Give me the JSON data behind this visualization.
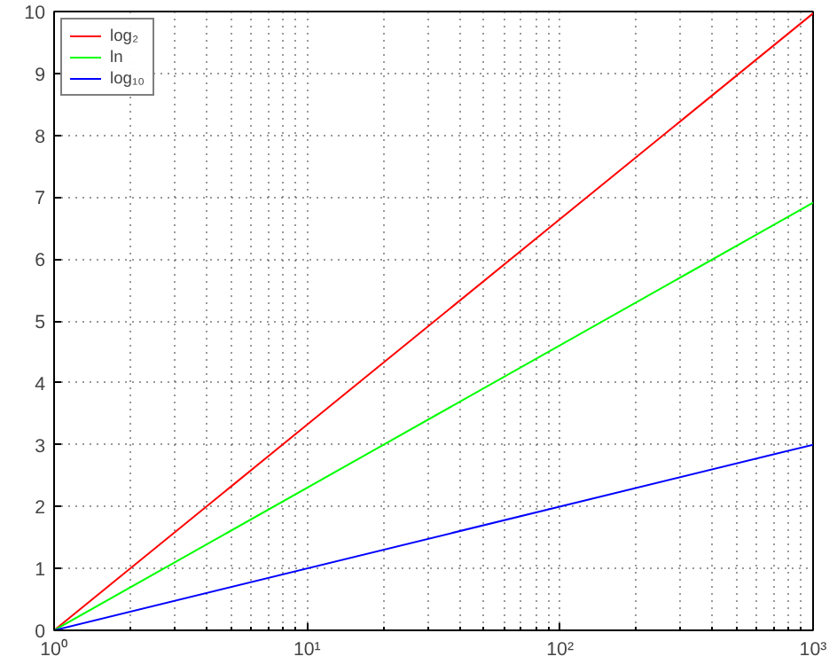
{
  "chart_data": {
    "type": "line",
    "log": "x",
    "x": [
      1,
      1000
    ],
    "series": [
      {
        "name": "log₂",
        "color": "#ff0000",
        "values": [
          0,
          9.97
        ]
      },
      {
        "name": "ln",
        "color": "#00ff00",
        "values": [
          0,
          6.91
        ]
      },
      {
        "name": "log₁₀",
        "color": "#0000ff",
        "values": [
          0,
          3
        ]
      }
    ],
    "xlim": [
      1,
      1000
    ],
    "xticks": [
      {
        "value": 1,
        "label": "10⁰"
      },
      {
        "value": 10,
        "label": "10¹"
      },
      {
        "value": 100,
        "label": "10²"
      },
      {
        "value": 1000,
        "label": "10³"
      }
    ],
    "ylim": [
      0,
      10
    ],
    "yticks": [
      0,
      1,
      2,
      3,
      4,
      5,
      6,
      7,
      8,
      9,
      10
    ],
    "grid": true,
    "legend": "top left",
    "line_style": "solid",
    "marker": "none"
  }
}
